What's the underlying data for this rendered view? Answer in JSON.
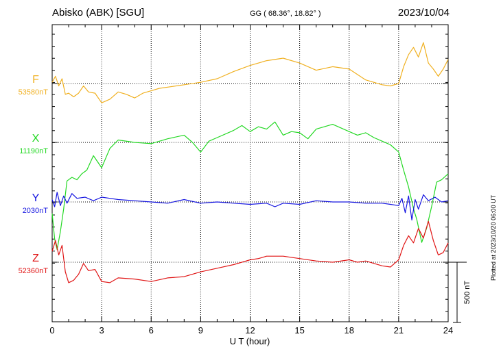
{
  "header": {
    "station": "Abisko (ABK)  [SGU]",
    "coords": "GG ( 68.36°,  18.82° )",
    "date": "2023/10/04"
  },
  "footer": {
    "plotted": "Plotted at 2023/10/20 06:00 UT"
  },
  "chart_data": {
    "type": "line",
    "title": "Abisko (ABK)  [SGU]",
    "xlabel": "U T (hour)",
    "xlim": [
      0,
      24
    ],
    "xticks": [
      "0",
      "3",
      "6",
      "9",
      "12",
      "15",
      "18",
      "21",
      "24"
    ],
    "grid": true,
    "scale_bar_label": "500 nT",
    "scale_bar_nT": 500,
    "series": [
      {
        "name": "F",
        "baseline_label": "53580nT",
        "baseline": 53580,
        "color": "#f0b020",
        "hours": [
          0,
          0.2,
          0.4,
          0.6,
          0.8,
          1.0,
          1.3,
          1.6,
          1.9,
          2.2,
          2.6,
          3.0,
          3.5,
          4.0,
          4.5,
          5.0,
          5.5,
          6.0,
          6.5,
          7.0,
          8.0,
          9.0,
          10.0,
          11.0,
          12.0,
          13.0,
          14.0,
          15.0,
          16.0,
          17.0,
          18.0,
          19.0,
          20.0,
          20.5,
          21.0,
          21.3,
          21.6,
          21.9,
          22.2,
          22.5,
          22.8,
          23.1,
          23.4,
          23.7,
          24.0
        ],
        "values": [
          53590,
          53640,
          53560,
          53620,
          53490,
          53500,
          53470,
          53500,
          53560,
          53510,
          53500,
          53420,
          53450,
          53510,
          53490,
          53460,
          53500,
          53520,
          53540,
          53550,
          53570,
          53590,
          53620,
          53680,
          53730,
          53770,
          53790,
          53750,
          53690,
          53720,
          53700,
          53610,
          53570,
          53560,
          53580,
          53720,
          53820,
          53880,
          53800,
          53920,
          53750,
          53700,
          53640,
          53700,
          53780
        ]
      },
      {
        "name": "X",
        "baseline_label": "11190nT",
        "baseline": 11190,
        "color": "#22d822",
        "hours": [
          0,
          0.15,
          0.3,
          0.5,
          0.7,
          0.9,
          1.2,
          1.5,
          1.8,
          2.1,
          2.5,
          3.0,
          3.5,
          4.0,
          5.0,
          6.0,
          7.0,
          8.0,
          8.5,
          9.0,
          9.5,
          10.0,
          11.0,
          11.5,
          12.0,
          12.5,
          13.0,
          13.5,
          14.0,
          14.5,
          15.0,
          15.5,
          16.0,
          17.0,
          18.0,
          18.5,
          19.0,
          19.5,
          20.0,
          20.5,
          21.0,
          21.3,
          21.6,
          21.9,
          22.1,
          22.4,
          22.7,
          23.0,
          23.3,
          23.6,
          24.0
        ],
        "values": [
          10600,
          10390,
          10300,
          10450,
          10640,
          10870,
          10900,
          10880,
          10930,
          10960,
          11080,
          10980,
          11140,
          11210,
          11190,
          11180,
          11220,
          11250,
          11190,
          11110,
          11200,
          11230,
          11290,
          11330,
          11280,
          11320,
          11300,
          11360,
          11250,
          11280,
          11270,
          11220,
          11300,
          11340,
          11280,
          11250,
          11270,
          11230,
          11200,
          11170,
          11110,
          10960,
          10820,
          10640,
          10550,
          10360,
          10480,
          10660,
          10860,
          10880,
          10930
        ]
      },
      {
        "name": "Y",
        "baseline_label": "2030nT",
        "baseline": 2030,
        "color": "#1414e0",
        "hours": [
          0,
          0.15,
          0.3,
          0.5,
          0.7,
          0.9,
          1.2,
          1.5,
          2.0,
          2.5,
          3.0,
          3.5,
          4.0,
          5.0,
          6.0,
          7.0,
          8.0,
          9.0,
          10.0,
          11.0,
          12.0,
          13.0,
          13.5,
          14.0,
          15.0,
          16.0,
          17.0,
          18.0,
          19.0,
          20.0,
          20.5,
          21.0,
          21.2,
          21.4,
          21.6,
          21.8,
          22.0,
          22.2,
          22.5,
          22.8,
          23.2,
          23.6,
          24.0
        ],
        "values": [
          2050,
          1990,
          2110,
          2000,
          2080,
          2020,
          2100,
          2060,
          2070,
          2040,
          2070,
          2060,
          2050,
          2040,
          2030,
          2020,
          2050,
          2020,
          2030,
          2020,
          2010,
          2020,
          1990,
          2020,
          2010,
          2040,
          2030,
          2030,
          2020,
          2020,
          2010,
          2000,
          2060,
          1940,
          2080,
          1880,
          2050,
          1970,
          2090,
          2040,
          2070,
          2030,
          2040
        ]
      },
      {
        "name": "Z",
        "baseline_label": "52360nT",
        "baseline": 52360,
        "color": "#e01414",
        "hours": [
          0,
          0.2,
          0.4,
          0.6,
          0.8,
          1.0,
          1.3,
          1.6,
          1.9,
          2.2,
          2.6,
          3.0,
          3.5,
          4.0,
          5.0,
          6.0,
          7.0,
          8.0,
          9.0,
          10.0,
          11.0,
          12.0,
          12.5,
          13.0,
          14.0,
          15.0,
          16.0,
          17.0,
          18.0,
          18.5,
          19.0,
          20.0,
          20.5,
          21.0,
          21.3,
          21.6,
          21.9,
          22.2,
          22.5,
          22.8,
          23.1,
          23.4,
          23.7,
          24.0
        ],
        "values": [
          52450,
          52540,
          52420,
          52500,
          52280,
          52190,
          52210,
          52260,
          52350,
          52290,
          52300,
          52200,
          52190,
          52230,
          52220,
          52200,
          52230,
          52240,
          52280,
          52310,
          52340,
          52380,
          52390,
          52410,
          52410,
          52390,
          52370,
          52360,
          52380,
          52360,
          52370,
          52330,
          52320,
          52380,
          52500,
          52580,
          52520,
          52640,
          52560,
          52700,
          52540,
          52420,
          52440,
          52520
        ]
      }
    ]
  }
}
